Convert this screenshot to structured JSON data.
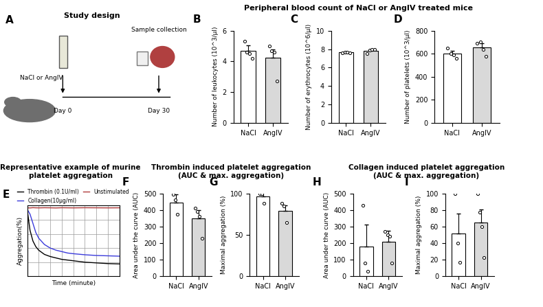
{
  "section_titles": [
    "Peripheral blood count of NaCl or AngIV treated mice",
    "Representative example of murine\nplatelet aggregation",
    "Thrombin induced platelet aggregation\n(AUC & max. aggregation)",
    "Collagen induced platelet aggregation\n(AUC & max. aggregation)"
  ],
  "study_design": {
    "panel": "A",
    "title": "Study design",
    "treatment": "NaCl or AngIV",
    "collection": "Sample collection",
    "start": "Day 0",
    "end": "Day 30"
  },
  "chart_data": [
    {
      "panel": "B",
      "type": "bar",
      "categories": [
        "NaCl",
        "AngIV"
      ],
      "values": [
        4.7,
        4.25
      ],
      "errors": [
        0.35,
        0.55
      ],
      "points": [
        [
          5.3,
          4.6,
          4.5,
          4.2
        ],
        [
          5.0,
          4.7,
          4.6,
          2.7
        ]
      ],
      "colors": [
        "#ffffff",
        "#d9d9d9"
      ],
      "y_label": "Number of leukocytes (10^3/µl)",
      "ylim": [
        0,
        6
      ],
      "yticks": [
        0,
        2,
        4,
        6
      ]
    },
    {
      "panel": "C",
      "type": "bar",
      "categories": [
        "NaCl",
        "AngIV"
      ],
      "values": [
        7.65,
        7.85
      ],
      "errors": [
        0.08,
        0.15
      ],
      "points": [
        [
          7.6,
          7.7,
          7.7,
          7.6
        ],
        [
          7.5,
          7.9,
          8.0,
          8.0
        ]
      ],
      "colors": [
        "#ffffff",
        "#d9d9d9"
      ],
      "y_label": "Number of erythrocytes (10^6/µl)",
      "ylim": [
        0,
        10
      ],
      "yticks": [
        0,
        2,
        4,
        6,
        8,
        10
      ]
    },
    {
      "panel": "D",
      "type": "bar",
      "categories": [
        "NaCl",
        "AngIV"
      ],
      "values": [
        600,
        655
      ],
      "errors": [
        25,
        35
      ],
      "points": [
        [
          650,
          600,
          590,
          560
        ],
        [
          690,
          700,
          640,
          580
        ]
      ],
      "colors": [
        "#ffffff",
        "#d9d9d9"
      ],
      "y_label": "Number of platelets (10^3/µl)",
      "ylim": [
        0,
        800
      ],
      "yticks": [
        0,
        200,
        400,
        600,
        800
      ]
    },
    {
      "panel": "E",
      "type": "line",
      "x": [
        0,
        0.25,
        0.5,
        0.75,
        1,
        1.5,
        2,
        2.5,
        3,
        3.5,
        4,
        5,
        6,
        7,
        8
      ],
      "series": [
        {
          "name": "Thrombin (0.1U/ml)",
          "color": "#000000",
          "values": [
            5,
            35,
            50,
            58,
            63,
            69,
            72,
            74,
            76,
            77,
            78,
            80,
            81,
            82,
            82.5
          ]
        },
        {
          "name": "Collagen(10µg/ml)",
          "color": "#3b3bdb",
          "values": [
            5,
            12,
            25,
            38,
            46,
            55,
            60,
            63,
            65,
            67,
            68,
            69.5,
            70.5,
            71,
            71.5
          ]
        },
        {
          "name": "Unstimulated",
          "color": "#b03a3a",
          "values": [
            3,
            3.2,
            2.8,
            3,
            3.1,
            2.9,
            3,
            3.2,
            2.9,
            3,
            3.1,
            2.9,
            3,
            3.1,
            3
          ]
        }
      ],
      "x_label": "Time (minute)",
      "y_label": "Aggregation(%)",
      "xlim": [
        0,
        8
      ],
      "xticks": [
        0,
        1,
        2,
        3,
        4,
        5,
        6,
        7,
        8
      ],
      "ylim": [
        100,
        0
      ],
      "yticks": [
        0,
        20,
        40,
        60,
        80,
        100
      ],
      "grid": true,
      "tick_labels": false,
      "legend": "upper center"
    },
    {
      "panel": "F",
      "type": "bar",
      "categories": [
        "NaCl",
        "AngIV"
      ],
      "values": [
        445,
        350
      ],
      "errors": [
        50,
        50
      ],
      "points": [
        [
          495,
          460,
          375
        ],
        [
          410,
          390,
          360,
          230
        ]
      ],
      "colors": [
        "#ffffff",
        "#d9d9d9"
      ],
      "y_label": "Area under the curve (AUC)",
      "ylim": [
        0,
        500
      ],
      "yticks": [
        0,
        100,
        200,
        300,
        400,
        500
      ]
    },
    {
      "panel": "G",
      "type": "bar",
      "categories": [
        "NaCl",
        "AngIV"
      ],
      "values": [
        96,
        79
      ],
      "errors": [
        5,
        7
      ],
      "points": [
        [
          100,
          100,
          88
        ],
        [
          88,
          85,
          65
        ]
      ],
      "colors": [
        "#ffffff",
        "#d9d9d9"
      ],
      "y_label": "Maximal aggregation (%)",
      "ylim": [
        0,
        100
      ],
      "yticks": [
        0,
        50,
        100
      ]
    },
    {
      "panel": "H",
      "type": "bar",
      "categories": [
        "NaCl",
        "AngIV"
      ],
      "values": [
        180,
        210
      ],
      "errors": [
        130,
        65
      ],
      "points": [
        [
          430,
          80,
          30
        ],
        [
          270,
          250,
          240,
          80
        ]
      ],
      "colors": [
        "#ffffff",
        "#d9d9d9"
      ],
      "y_label": "Area under the curve (AUC)",
      "ylim": [
        0,
        500
      ],
      "yticks": [
        0,
        100,
        200,
        300,
        400,
        500
      ]
    },
    {
      "panel": "I",
      "type": "bar",
      "categories": [
        "NaCl",
        "AngIV"
      ],
      "values": [
        52,
        65
      ],
      "errors": [
        24,
        16
      ],
      "points": [
        [
          100,
          40,
          17
        ],
        [
          100,
          77,
          60,
          23
        ]
      ],
      "colors": [
        "#ffffff",
        "#d9d9d9"
      ],
      "y_label": "Maximal aggregation (%)",
      "ylim": [
        0,
        100
      ],
      "yticks": [
        0,
        20,
        40,
        60,
        80,
        100
      ]
    }
  ]
}
